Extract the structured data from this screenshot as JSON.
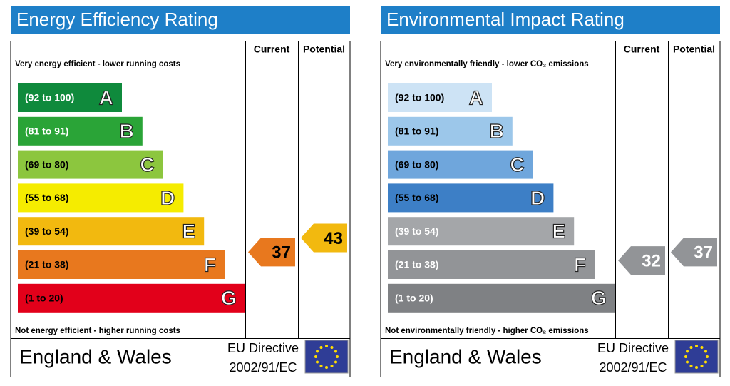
{
  "panels": [
    {
      "title": "Energy Efficiency Rating",
      "columns": [
        "Current",
        "Potential"
      ],
      "top_note": "Very energy efficient - lower running costs",
      "bottom_note": "Not energy efficient - higher running costs",
      "bands": [
        {
          "range": "(92 to 100)",
          "letter": "A",
          "color": "#0f8a3c",
          "text_color": "#ffffff"
        },
        {
          "range": "(81 to 91)",
          "letter": "B",
          "color": "#2aa437",
          "text_color": "#ffffff"
        },
        {
          "range": "(69 to 80)",
          "letter": "C",
          "color": "#8cc63e",
          "text_color": "#000000"
        },
        {
          "range": "(55 to 68)",
          "letter": "D",
          "color": "#f5ec00",
          "text_color": "#000000"
        },
        {
          "range": "(39 to 54)",
          "letter": "E",
          "color": "#f2b90f",
          "text_color": "#000000"
        },
        {
          "range": "(21 to 38)",
          "letter": "F",
          "color": "#e8781e",
          "text_color": "#000000"
        },
        {
          "range": "(1 to 20)",
          "letter": "G",
          "color": "#e2001a",
          "text_color": "#000000"
        }
      ],
      "current": 37,
      "potential": 43,
      "arrow_text_color": "#000000",
      "region": "England & Wales",
      "directive": [
        "EU Directive",
        "2002/91/EC"
      ]
    },
    {
      "title": "Environmental Impact Rating",
      "columns": [
        "Current",
        "Potential"
      ],
      "top_note": "Very environmentally friendly - lower CO₂ emissions",
      "bottom_note": "Not environmentally friendly - higher CO₂ emissions",
      "bands": [
        {
          "range": "(92 to 100)",
          "letter": "A",
          "color": "#cde3f5",
          "text_color": "#000000"
        },
        {
          "range": "(81 to 91)",
          "letter": "B",
          "color": "#9cc7ea",
          "text_color": "#000000"
        },
        {
          "range": "(69 to 80)",
          "letter": "C",
          "color": "#6fa6dc",
          "text_color": "#000000"
        },
        {
          "range": "(55 to 68)",
          "letter": "D",
          "color": "#3d7fc6",
          "text_color": "#000000"
        },
        {
          "range": "(39 to 54)",
          "letter": "E",
          "color": "#a4a6a9",
          "text_color": "#ffffff"
        },
        {
          "range": "(21 to 38)",
          "letter": "F",
          "color": "#929497",
          "text_color": "#ffffff"
        },
        {
          "range": "(1 to 20)",
          "letter": "G",
          "color": "#7f8184",
          "text_color": "#ffffff"
        }
      ],
      "current": 32,
      "potential": 37,
      "arrow_text_color": "#ffffff",
      "region": "England & Wales",
      "directive": [
        "EU Directive",
        "2002/91/EC"
      ]
    }
  ]
}
